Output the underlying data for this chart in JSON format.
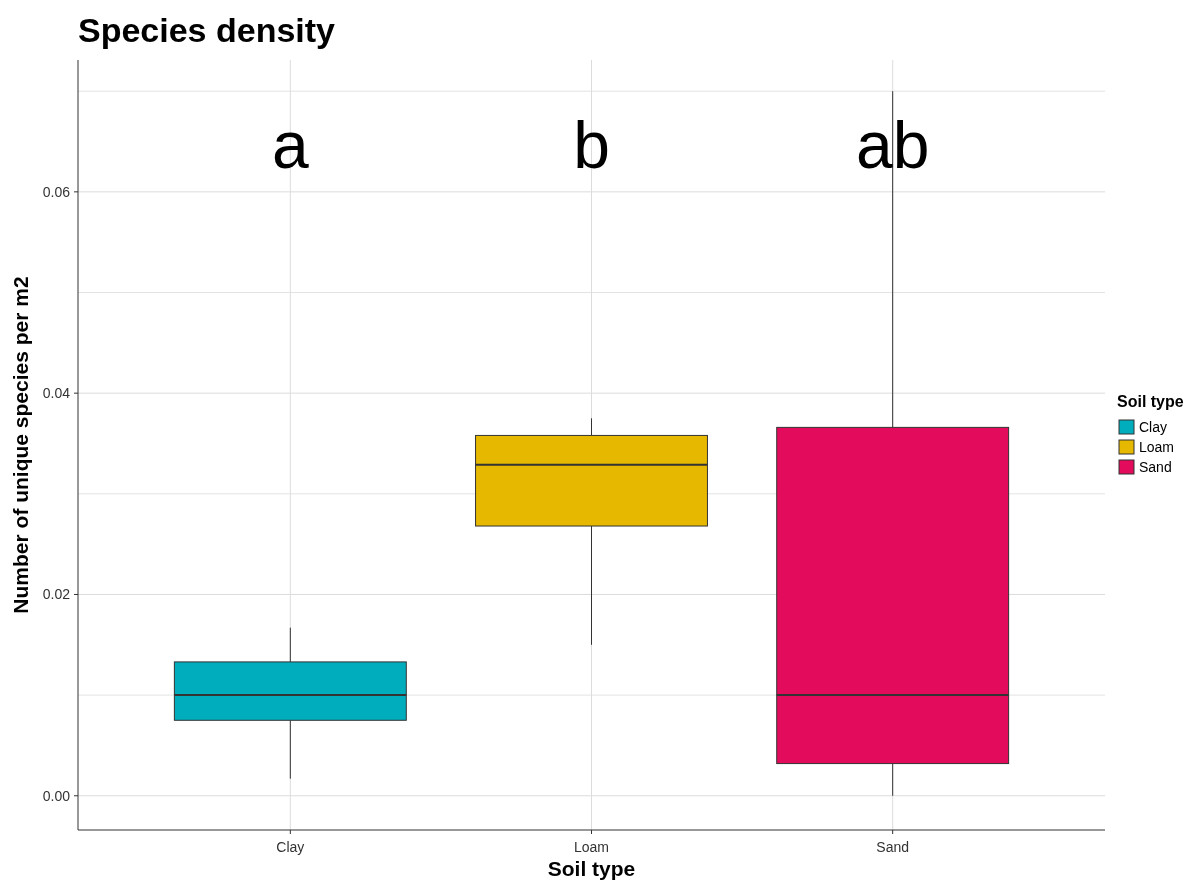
{
  "chart_data": {
    "type": "box",
    "title": "Species density",
    "xlabel": "Soil type",
    "ylabel": "Number of unique species per m2",
    "legend_title": "Soil type",
    "categories": [
      "Clay",
      "Loam",
      "Sand"
    ],
    "series": [
      {
        "name": "Clay",
        "color": "#00adbd",
        "boxes": [
          {
            "low": 0.0017,
            "q1": 0.0075,
            "median": 0.01,
            "q3": 0.0133,
            "high": 0.0167
          },
          null,
          null
        ]
      },
      {
        "name": "Loam",
        "color": "#e6b800",
        "boxes": [
          null,
          {
            "low": 0.015,
            "q1": 0.0268,
            "median": 0.0329,
            "q3": 0.0358,
            "high": 0.0375
          },
          null
        ]
      },
      {
        "name": "Sand",
        "color": "#e30b5c",
        "boxes": [
          null,
          null,
          {
            "low": 0.0,
            "q1": 0.0032,
            "median": 0.01,
            "q3": 0.0366,
            "high": 0.07
          }
        ]
      }
    ],
    "ylim": [
      -0.0034,
      0.0731
    ],
    "yticks": [
      {
        "value": 0,
        "label": "0.00"
      },
      {
        "value": 0.01,
        "label": null
      },
      {
        "value": 0.02,
        "label": "0.02"
      },
      {
        "value": 0.03,
        "label": null
      },
      {
        "value": 0.04,
        "label": "0.04"
      },
      {
        "value": 0.05,
        "label": null
      },
      {
        "value": 0.06,
        "label": "0.06"
      },
      {
        "value": 0.07,
        "label": null
      }
    ],
    "annotations": [
      "a",
      "b",
      "ab"
    ],
    "grid": true,
    "legend": "right"
  }
}
